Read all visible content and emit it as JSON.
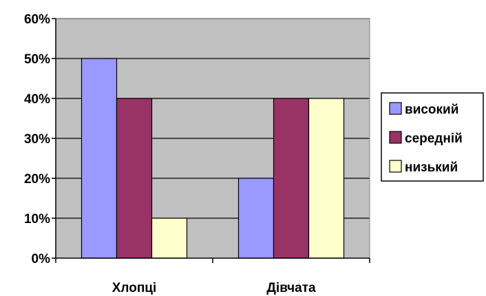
{
  "chart_data": {
    "type": "bar",
    "categories": [
      "Хлопці",
      "Дівчата"
    ],
    "series": [
      {
        "name": "високий",
        "values": [
          50,
          20
        ],
        "color": "#9999ff"
      },
      {
        "name": "середній",
        "values": [
          40,
          40
        ],
        "color": "#993366"
      },
      {
        "name": "низький",
        "values": [
          10,
          40
        ],
        "color": "#ffffcc"
      }
    ],
    "ylim": [
      0,
      60
    ],
    "yticks": [
      "0%",
      "10%",
      "20%",
      "30%",
      "40%",
      "50%",
      "60%"
    ],
    "grid": true,
    "legend": "right",
    "plot_background": "#c0c0c0"
  }
}
